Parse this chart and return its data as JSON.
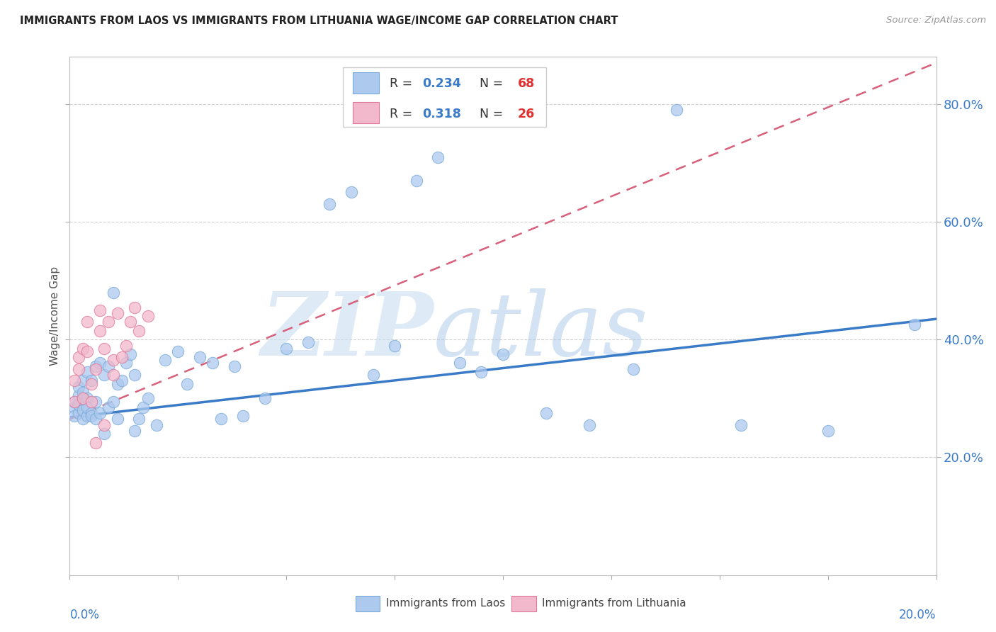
{
  "title": "IMMIGRANTS FROM LAOS VS IMMIGRANTS FROM LITHUANIA WAGE/INCOME GAP CORRELATION CHART",
  "source": "Source: ZipAtlas.com",
  "ylabel": "Wage/Income Gap",
  "xmin": 0.0,
  "xmax": 0.2,
  "ymin": 0.0,
  "ymax": 0.88,
  "yticks": [
    0.2,
    0.4,
    0.6,
    0.8
  ],
  "ytick_labels": [
    "20.0%",
    "40.0%",
    "60.0%",
    "80.0%"
  ],
  "laos_color": "#adc9ee",
  "laos_edge_color": "#7aaad8",
  "lithuania_color": "#f2b8cb",
  "lithuania_edge_color": "#e07898",
  "laos_line_color": "#3a7bc8",
  "lithuania_line_color": "#d9607a",
  "R_laos": 0.234,
  "N_laos": 68,
  "R_lithuania": 0.318,
  "N_lithuania": 26,
  "watermark_zip": "ZIP",
  "watermark_atlas": "atlas",
  "legend_labels": [
    "Immigrants from Laos",
    "Immigrants from Lithuania"
  ],
  "laos_line_x0": 0.0,
  "laos_line_y0": 0.268,
  "laos_line_x1": 0.2,
  "laos_line_y1": 0.435,
  "lith_line_x0": 0.0,
  "lith_line_y0": 0.265,
  "lith_line_x1": 0.2,
  "lith_line_y1": 0.87,
  "laos_x": [
    0.001,
    0.001,
    0.001,
    0.002,
    0.002,
    0.002,
    0.002,
    0.003,
    0.003,
    0.003,
    0.003,
    0.003,
    0.004,
    0.004,
    0.004,
    0.004,
    0.005,
    0.005,
    0.005,
    0.006,
    0.006,
    0.006,
    0.007,
    0.007,
    0.008,
    0.008,
    0.009,
    0.009,
    0.01,
    0.01,
    0.011,
    0.011,
    0.012,
    0.013,
    0.014,
    0.015,
    0.015,
    0.016,
    0.017,
    0.018,
    0.02,
    0.022,
    0.025,
    0.027,
    0.03,
    0.033,
    0.035,
    0.038,
    0.04,
    0.045,
    0.05,
    0.055,
    0.06,
    0.065,
    0.07,
    0.075,
    0.08,
    0.085,
    0.09,
    0.095,
    0.1,
    0.11,
    0.12,
    0.13,
    0.14,
    0.155,
    0.175,
    0.195
  ],
  "laos_y": [
    0.285,
    0.295,
    0.27,
    0.305,
    0.32,
    0.275,
    0.29,
    0.33,
    0.3,
    0.265,
    0.28,
    0.31,
    0.345,
    0.3,
    0.27,
    0.285,
    0.33,
    0.275,
    0.27,
    0.355,
    0.295,
    0.265,
    0.36,
    0.275,
    0.34,
    0.24,
    0.355,
    0.285,
    0.48,
    0.295,
    0.325,
    0.265,
    0.33,
    0.36,
    0.375,
    0.34,
    0.245,
    0.265,
    0.285,
    0.3,
    0.255,
    0.365,
    0.38,
    0.325,
    0.37,
    0.36,
    0.265,
    0.355,
    0.27,
    0.3,
    0.385,
    0.395,
    0.63,
    0.65,
    0.34,
    0.39,
    0.67,
    0.71,
    0.36,
    0.345,
    0.375,
    0.275,
    0.255,
    0.35,
    0.79,
    0.255,
    0.245,
    0.425
  ],
  "lithuania_x": [
    0.001,
    0.001,
    0.002,
    0.002,
    0.003,
    0.003,
    0.004,
    0.004,
    0.005,
    0.005,
    0.006,
    0.006,
    0.007,
    0.007,
    0.008,
    0.008,
    0.009,
    0.01,
    0.01,
    0.011,
    0.012,
    0.013,
    0.014,
    0.015,
    0.016,
    0.018
  ],
  "lithuania_y": [
    0.295,
    0.33,
    0.37,
    0.35,
    0.385,
    0.3,
    0.43,
    0.38,
    0.295,
    0.325,
    0.35,
    0.225,
    0.415,
    0.45,
    0.385,
    0.255,
    0.43,
    0.365,
    0.34,
    0.445,
    0.37,
    0.39,
    0.43,
    0.455,
    0.415,
    0.44
  ]
}
